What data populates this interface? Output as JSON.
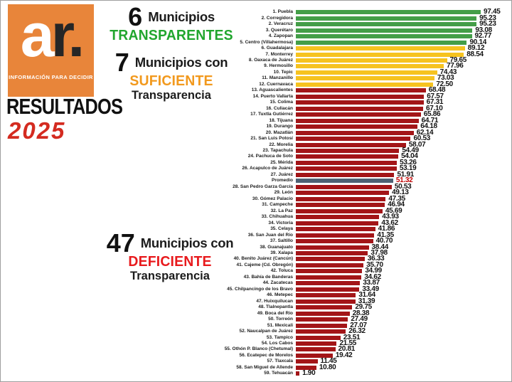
{
  "logo": {
    "brand_a": "a",
    "brand_r": "r.",
    "tagline": "INFORMACIÓN PARA DECIDIR"
  },
  "header": {
    "title": "RESULTADOS",
    "year": "2025"
  },
  "annotations": {
    "transparent": {
      "count": "6",
      "label": "Municipios",
      "emphasis": "TRANSPARENTES"
    },
    "sufficient": {
      "count": "7",
      "label": "Municipios con",
      "emphasis": "SUFICIENTE",
      "suffix": "Transparencia"
    },
    "deficient": {
      "count": "47",
      "label": "Municipios con",
      "emphasis": "DEFICIENTE",
      "suffix": "Transparencia"
    }
  },
  "colors": {
    "bar_green": "#449E48",
    "bar_yellow": "#F6C320",
    "bar_red": "#A31518",
    "bar_average": "#4E6174",
    "text_green": "#21A62E",
    "text_orange": "#F2991D",
    "text_red": "#E81A1D",
    "value_red": "#C00000",
    "logo_orange": "#E8853A",
    "year_red": "#D42B20"
  },
  "chart_data": {
    "type": "bar",
    "orientation": "horizontal",
    "value_range": [
      0,
      100
    ],
    "groups": {
      "transparent": "#449E48",
      "sufficient": "#F6C320",
      "deficient": "#A31518",
      "average": "#4E6174"
    },
    "rows": [
      {
        "label": "1. Puebla",
        "value": 97.45,
        "group": "transparent"
      },
      {
        "label": "2. Corregidora",
        "value": 95.23,
        "group": "transparent"
      },
      {
        "label": "2. Veracruz",
        "value": 95.23,
        "group": "transparent"
      },
      {
        "label": "3. Querétaro",
        "value": 93.08,
        "group": "transparent"
      },
      {
        "label": "4. Zapopan",
        "value": 92.77,
        "group": "transparent"
      },
      {
        "label": "5. Centro (Villahermosa)",
        "value": 90.14,
        "group": "transparent"
      },
      {
        "label": "6. Guadalajara",
        "value": 89.12,
        "group": "sufficient"
      },
      {
        "label": "7. Monterrey",
        "value": 88.54,
        "group": "sufficient"
      },
      {
        "label": "8. Oaxaca de Juárez",
        "value": 79.65,
        "group": "sufficient"
      },
      {
        "label": "9. Hermosillo",
        "value": 77.96,
        "group": "sufficient"
      },
      {
        "label": "10. Tepic",
        "value": 74.43,
        "group": "sufficient"
      },
      {
        "label": "11. Manzanillo",
        "value": 73.03,
        "group": "sufficient"
      },
      {
        "label": "12. Cuernavaca",
        "value": 72.5,
        "group": "sufficient"
      },
      {
        "label": "13. Aguascalientes",
        "value": 68.48,
        "group": "deficient"
      },
      {
        "label": "14. Puerto Vallarta",
        "value": 67.57,
        "group": "deficient"
      },
      {
        "label": "15. Colima",
        "value": 67.31,
        "group": "deficient"
      },
      {
        "label": "16. Culiacán",
        "value": 67.1,
        "group": "deficient"
      },
      {
        "label": "17. Tuxtla Gutiérrez",
        "value": 65.86,
        "group": "deficient"
      },
      {
        "label": "18. Tijuana",
        "value": 64.71,
        "group": "deficient"
      },
      {
        "label": "19. Durango",
        "value": 64.18,
        "group": "deficient"
      },
      {
        "label": "20. Mazatlán",
        "value": 62.14,
        "group": "deficient"
      },
      {
        "label": "21. San Luis Potosí",
        "value": 60.53,
        "group": "deficient"
      },
      {
        "label": "22. Morelia",
        "value": 58.07,
        "group": "deficient"
      },
      {
        "label": "23. Tapachula",
        "value": 54.49,
        "group": "deficient"
      },
      {
        "label": "24. Pachuca de Soto",
        "value": 54.04,
        "group": "deficient"
      },
      {
        "label": "25. Mérida",
        "value": 53.26,
        "group": "deficient"
      },
      {
        "label": "26. Acapulco de Juárez",
        "value": 53.19,
        "group": "deficient"
      },
      {
        "label": "27. Juárez",
        "value": 51.91,
        "group": "deficient"
      },
      {
        "label": "Promedio",
        "value": 51.32,
        "group": "average"
      },
      {
        "label": "28. San Pedro Garza García",
        "value": 50.53,
        "group": "deficient"
      },
      {
        "label": "29. León",
        "value": 49.13,
        "group": "deficient"
      },
      {
        "label": "30. Gómez Palacio",
        "value": 47.35,
        "group": "deficient"
      },
      {
        "label": "31. Campeche",
        "value": 46.94,
        "group": "deficient"
      },
      {
        "label": "32. La Paz",
        "value": 45.69,
        "group": "deficient"
      },
      {
        "label": "33. Chihuahua",
        "value": 43.93,
        "group": "deficient"
      },
      {
        "label": "34. Victoria",
        "value": 43.62,
        "group": "deficient"
      },
      {
        "label": "35. Celaya",
        "value": 41.86,
        "group": "deficient"
      },
      {
        "label": "36. San Juan del Río",
        "value": 41.35,
        "group": "deficient"
      },
      {
        "label": "37. Saltillo",
        "value": 40.7,
        "group": "deficient"
      },
      {
        "label": "38. Guanajuato",
        "value": 38.44,
        "group": "deficient"
      },
      {
        "label": "39. Xalapa",
        "value": 37.98,
        "group": "deficient"
      },
      {
        "label": "40. Benito Juárez (Cancún)",
        "value": 36.33,
        "group": "deficient"
      },
      {
        "label": "41. Cajeme (Cd. Obregón)",
        "value": 35.7,
        "group": "deficient"
      },
      {
        "label": "42. Toluca",
        "value": 34.99,
        "group": "deficient"
      },
      {
        "label": "43. Bahía de Banderas",
        "value": 34.62,
        "group": "deficient"
      },
      {
        "label": "44. Zacatecas",
        "value": 33.87,
        "group": "deficient"
      },
      {
        "label": "45. Chilpancingo de los Bravo",
        "value": 33.49,
        "group": "deficient"
      },
      {
        "label": "46. Metepec",
        "value": 31.64,
        "group": "deficient"
      },
      {
        "label": "47. Huixquilucan",
        "value": 31.39,
        "group": "deficient"
      },
      {
        "label": "48. Tlalnepantla",
        "value": 29.75,
        "group": "deficient"
      },
      {
        "label": "49. Boca del Río",
        "value": 28.38,
        "group": "deficient"
      },
      {
        "label": "50. Torreón",
        "value": 27.49,
        "group": "deficient"
      },
      {
        "label": "51. Mexicali",
        "value": 27.07,
        "group": "deficient"
      },
      {
        "label": "52. Naucalpan de Juárez",
        "value": 26.32,
        "group": "deficient"
      },
      {
        "label": "53. Tampico",
        "value": 23.51,
        "group": "deficient"
      },
      {
        "label": "54. Los Cabos",
        "value": 21.55,
        "group": "deficient"
      },
      {
        "label": "55. Othón P. Blanco (Chetumal)",
        "value": 20.81,
        "group": "deficient"
      },
      {
        "label": "56. Ecatepec de Morelos",
        "value": 19.42,
        "group": "deficient"
      },
      {
        "label": "57. Tlaxcala",
        "value": 11.45,
        "group": "deficient"
      },
      {
        "label": "58. San Miguel de Allende",
        "value": 10.8,
        "group": "deficient"
      },
      {
        "label": "59. Tehuacán",
        "value": 1.9,
        "group": "deficient"
      }
    ]
  }
}
